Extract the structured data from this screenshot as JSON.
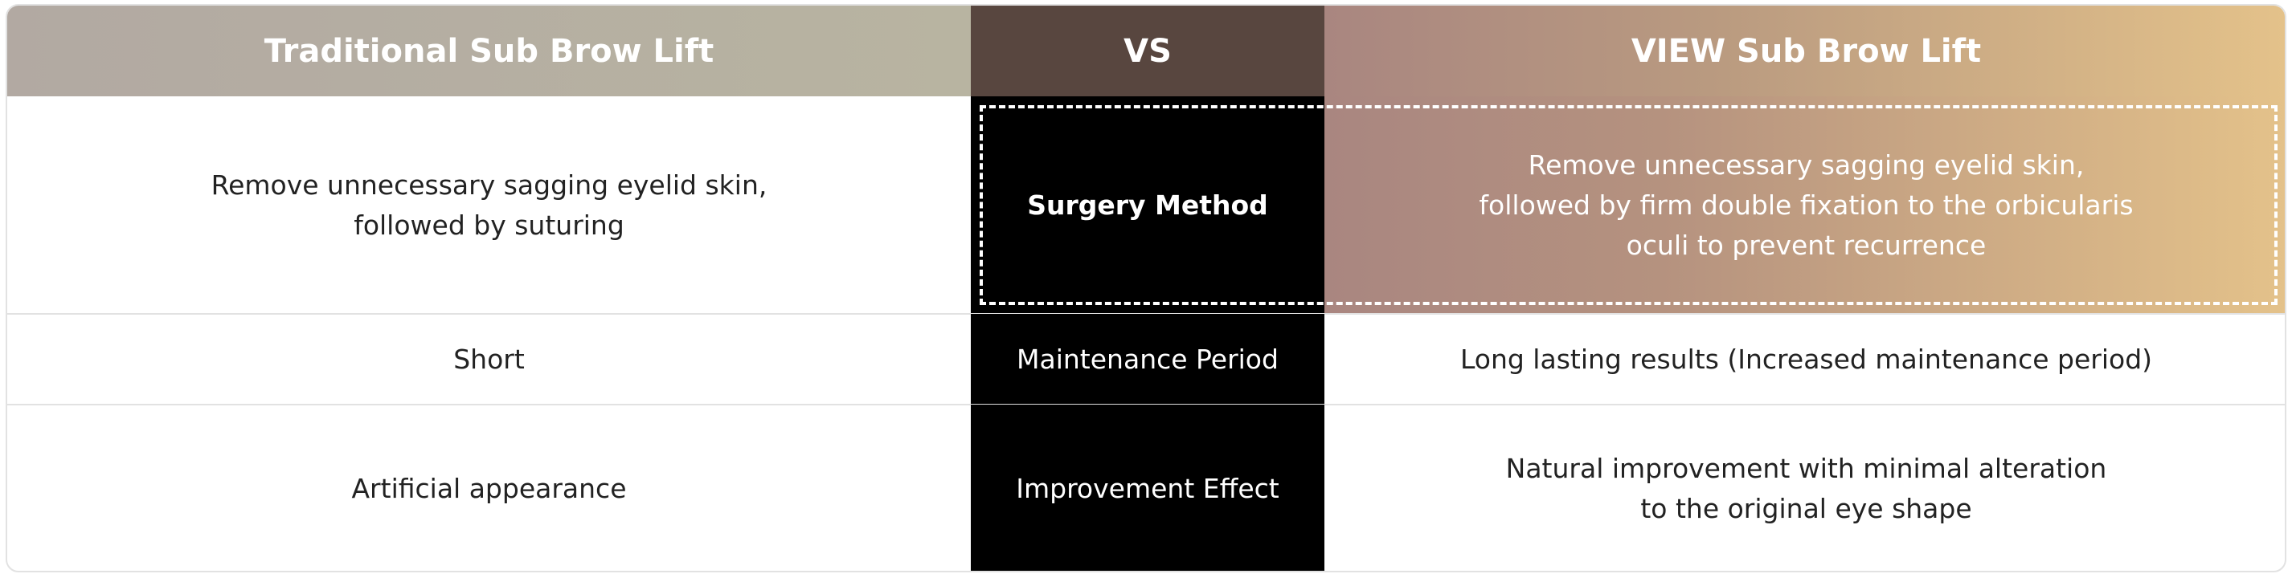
{
  "header": {
    "left": "Traditional Sub Brow Lift",
    "middle": "VS",
    "right": "VIEW Sub Brow Lift"
  },
  "rows": [
    {
      "left": [
        "Remove unnecessary sagging eyelid skin,",
        "followed by suturing"
      ],
      "label": "Surgery Method",
      "right": [
        "Remove unnecessary sagging eyelid skin,",
        "followed by firm double fixation to the orbicularis",
        "oculi to prevent recurrence"
      ]
    },
    {
      "left": [
        "Short"
      ],
      "label": "Maintenance Period",
      "right": [
        "Long lasting results (Increased maintenance period)"
      ]
    },
    {
      "left": [
        "Artificial appearance"
      ],
      "label": "Improvement Effect",
      "right": [
        "Natural improvement with minimal alteration",
        "to the original eye shape"
      ]
    }
  ]
}
